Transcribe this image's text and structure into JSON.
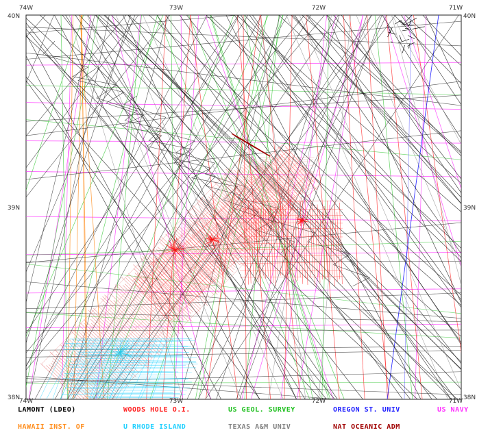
{
  "map": {
    "axis_labels": {
      "top": [
        "74W",
        "73W",
        "72W",
        "71W"
      ],
      "bottom": [
        "74W",
        "73W",
        "72W",
        "71W"
      ],
      "left": [
        "40N",
        "39N",
        "38N"
      ],
      "right": [
        "40N",
        "39N",
        "38N"
      ]
    }
  },
  "legend": [
    {
      "label": "LAMONT (LDEO)",
      "color": "#000000"
    },
    {
      "label": "WOODS HOLE O.I.",
      "color": "#ff2020"
    },
    {
      "label": "US GEOL. SURVEY",
      "color": "#20c020"
    },
    {
      "label": "OREGON ST. UNIV",
      "color": "#2020ff"
    },
    {
      "label": "US NAVY",
      "color": "#ff30ff"
    },
    {
      "label": "HAWAII INST. OF",
      "color": "#ff8c1a"
    },
    {
      "label": "U RHODE ISLAND",
      "color": "#20d0ff"
    },
    {
      "label": "TEXAS A&M UNIV",
      "color": "#808080"
    },
    {
      "label": "NAT OCEANIC ADM",
      "color": "#a00000"
    }
  ]
}
